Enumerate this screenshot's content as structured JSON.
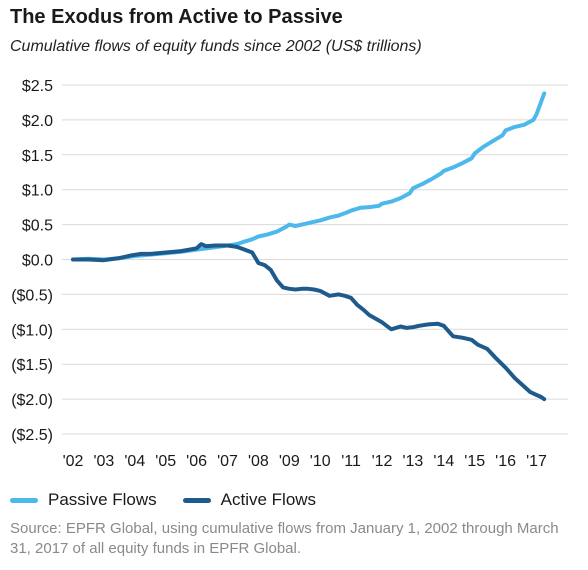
{
  "chart_data": {
    "type": "line",
    "title": "The Exodus from Active to Passive",
    "subtitle": "Cumulative flows of equity funds since 2002 (US$ trillions)",
    "x_tick_labels": [
      "'02",
      "'03",
      "'04",
      "'05",
      "'06",
      "'07",
      "'08",
      "'09",
      "'10",
      "'11",
      "'12",
      "'13",
      "'14",
      "'15",
      "'16",
      "'17"
    ],
    "y_tick_labels": [
      "$2.5",
      "$2.0",
      "$1.5",
      "$1.0",
      "$0.5",
      "$0.0",
      "($0.5)",
      "($1.0)",
      "($1.5)",
      "($2.0)",
      "($2.5)"
    ],
    "y_ticks": [
      2.5,
      2.0,
      1.5,
      1.0,
      0.5,
      0.0,
      -0.5,
      -1.0,
      -1.5,
      -2.0,
      -2.5
    ],
    "xlim": [
      2002,
      2017.25
    ],
    "ylim": [
      -2.5,
      2.5
    ],
    "grid": "horizontal",
    "legend_placement": "bottom",
    "series": [
      {
        "name": "Passive Flows",
        "color": "#4db8ec",
        "x": [
          2002.0,
          2002.5,
          2003.0,
          2003.5,
          2004.0,
          2004.5,
          2005.0,
          2005.5,
          2006.0,
          2006.5,
          2007.0,
          2007.3,
          2007.5,
          2007.8,
          2008.0,
          2008.3,
          2008.6,
          2008.9,
          2009.0,
          2009.2,
          2009.5,
          2009.8,
          2010.0,
          2010.3,
          2010.6,
          2010.9,
          2011.0,
          2011.3,
          2011.6,
          2011.9,
          2012.0,
          2012.3,
          2012.6,
          2012.9,
          2013.0,
          2013.3,
          2013.6,
          2013.9,
          2014.0,
          2014.3,
          2014.6,
          2014.9,
          2015.0,
          2015.3,
          2015.6,
          2015.9,
          2016.0,
          2016.3,
          2016.6,
          2016.9,
          2017.0,
          2017.1,
          2017.25
        ],
        "values": [
          0.0,
          0.01,
          0.0,
          0.02,
          0.05,
          0.07,
          0.09,
          0.11,
          0.14,
          0.17,
          0.2,
          0.22,
          0.25,
          0.29,
          0.33,
          0.36,
          0.4,
          0.47,
          0.5,
          0.48,
          0.51,
          0.54,
          0.56,
          0.6,
          0.63,
          0.68,
          0.7,
          0.74,
          0.75,
          0.77,
          0.8,
          0.83,
          0.88,
          0.95,
          1.02,
          1.08,
          1.15,
          1.23,
          1.27,
          1.32,
          1.38,
          1.45,
          1.52,
          1.62,
          1.7,
          1.78,
          1.85,
          1.9,
          1.93,
          2.0,
          2.08,
          2.2,
          2.38
        ]
      },
      {
        "name": "Active Flows",
        "color": "#1f5a8c",
        "x": [
          2002.0,
          2002.5,
          2003.0,
          2003.5,
          2003.9,
          2004.2,
          2004.5,
          2005.0,
          2005.5,
          2006.0,
          2006.15,
          2006.3,
          2006.6,
          2007.0,
          2007.3,
          2007.5,
          2007.8,
          2008.0,
          2008.2,
          2008.4,
          2008.6,
          2008.8,
          2009.0,
          2009.2,
          2009.4,
          2009.6,
          2009.8,
          2010.0,
          2010.3,
          2010.6,
          2010.8,
          2011.0,
          2011.2,
          2011.4,
          2011.6,
          2011.8,
          2012.0,
          2012.3,
          2012.6,
          2012.8,
          2013.0,
          2013.2,
          2013.5,
          2013.8,
          2014.0,
          2014.3,
          2014.6,
          2014.9,
          2015.1,
          2015.4,
          2015.7,
          2016.0,
          2016.3,
          2016.6,
          2016.8,
          2017.0,
          2017.15,
          2017.25
        ],
        "values": [
          0.0,
          0.0,
          -0.01,
          0.02,
          0.06,
          0.08,
          0.08,
          0.1,
          0.12,
          0.16,
          0.22,
          0.19,
          0.2,
          0.2,
          0.18,
          0.15,
          0.1,
          -0.05,
          -0.08,
          -0.15,
          -0.3,
          -0.4,
          -0.42,
          -0.43,
          -0.42,
          -0.42,
          -0.43,
          -0.45,
          -0.52,
          -0.5,
          -0.52,
          -0.55,
          -0.65,
          -0.72,
          -0.8,
          -0.85,
          -0.9,
          -1.0,
          -0.96,
          -0.98,
          -0.97,
          -0.95,
          -0.93,
          -0.92,
          -0.95,
          -1.1,
          -1.12,
          -1.15,
          -1.22,
          -1.28,
          -1.42,
          -1.55,
          -1.7,
          -1.82,
          -1.9,
          -1.94,
          -1.97,
          -2.0
        ]
      }
    ]
  },
  "legend": {
    "passive_label": "Passive Flows",
    "active_label": "Active Flows"
  },
  "source": "Source: EPFR Global, using cumulative flows from January 1, 2002 through March 31, 2017 of all equity funds in EPFR Global."
}
